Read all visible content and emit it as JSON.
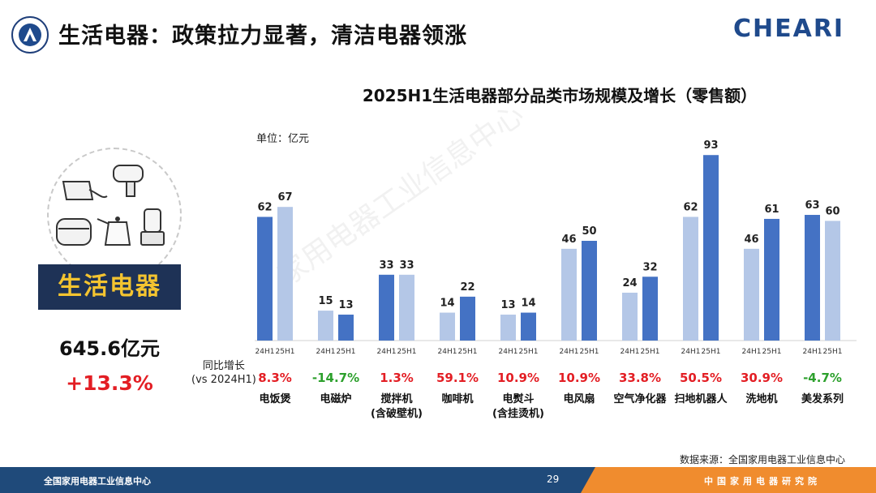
{
  "header": {
    "title": "生活电器：政策拉力显著，清洁电器领涨",
    "brand": "CHEARI"
  },
  "left_panel": {
    "category_label": "生活电器",
    "total_value": "645.6亿元",
    "total_growth": "+13.3%"
  },
  "yoy_label_line1": "同比增长",
  "yoy_label_line2": "(vs 2024H1)",
  "source": "数据来源：全国家用电器工业信息中心",
  "watermark": "家用电器工业信息中心",
  "footer": {
    "left_text": "全国家用电器工业信息中心",
    "page_number": "29",
    "right_text": "中国家用电器研究院"
  },
  "colors": {
    "light_bar": "#b4c7e7",
    "dark_bar": "#4472c4",
    "positive_growth": "#e31e24",
    "negative_growth": "#2ca02c"
  },
  "chart_data": {
    "type": "bar",
    "title": "2025H1生活电器部分品类市场规模及增长（零售额）",
    "unit": "单位：亿元",
    "ylim": [
      0,
      100
    ],
    "series_labels": [
      "24H1",
      "25H1"
    ],
    "categories": [
      {
        "name": "电饭煲",
        "sub": "",
        "v24": 62,
        "v25": 67,
        "yoy": "8.3%",
        "emph": "24"
      },
      {
        "name": "电磁炉",
        "sub": "",
        "v24": 15,
        "v25": 13,
        "yoy": "-14.7%",
        "emph": "25"
      },
      {
        "name": "搅拌机",
        "sub": "(含破壁机)",
        "v24": 33,
        "v25": 33,
        "yoy": "1.3%",
        "emph": "24"
      },
      {
        "name": "咖啡机",
        "sub": "",
        "v24": 14,
        "v25": 22,
        "yoy": "59.1%",
        "emph": "25"
      },
      {
        "name": "电熨斗",
        "sub": "(含挂烫机)",
        "v24": 13,
        "v25": 14,
        "yoy": "10.9%",
        "emph": "25"
      },
      {
        "name": "电风扇",
        "sub": "",
        "v24": 46,
        "v25": 50,
        "yoy": "10.9%",
        "emph": "25"
      },
      {
        "name": "空气净化器",
        "sub": "",
        "v24": 24,
        "v25": 32,
        "yoy": "33.8%",
        "emph": "25"
      },
      {
        "name": "扫地机器人",
        "sub": "",
        "v24": 62,
        "v25": 93,
        "yoy": "50.5%",
        "emph": "25"
      },
      {
        "name": "洗地机",
        "sub": "",
        "v24": 46,
        "v25": 61,
        "yoy": "30.9%",
        "emph": "25"
      },
      {
        "name": "美发系列",
        "sub": "",
        "v24": 63,
        "v25": 60,
        "yoy": "-4.7%",
        "emph": "24"
      }
    ]
  }
}
